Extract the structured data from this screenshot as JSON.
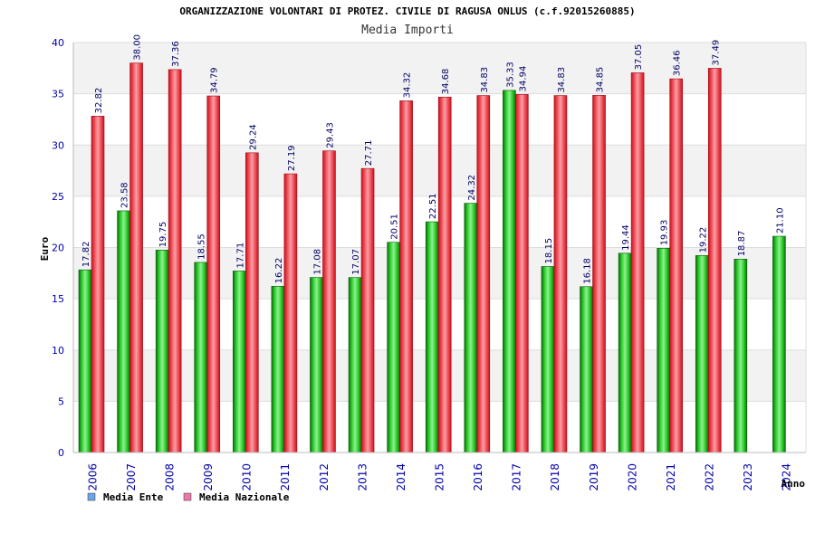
{
  "chart_data": {
    "type": "bar",
    "title": "ORGANIZZAZIONE VOLONTARI DI PROTEZ. CIVILE DI RAGUSA ONLUS (c.f.92015260885)",
    "subtitle": "Media Importi",
    "xlabel": "Anno",
    "ylabel": "Euro",
    "ylim": [
      0,
      40
    ],
    "yticks": [
      0,
      5,
      10,
      15,
      20,
      25,
      30,
      35,
      40
    ],
    "grid": true,
    "legend_position": "bottom-left",
    "categories": [
      "2006",
      "2007",
      "2008",
      "2009",
      "2010",
      "2011",
      "2012",
      "2013",
      "2014",
      "2015",
      "2016",
      "2017",
      "2018",
      "2019",
      "2020",
      "2021",
      "2022",
      "2023",
      "2024"
    ],
    "series": [
      {
        "name": "Media Ente",
        "legend_color": "#6aa5e8",
        "bar_color": "#1faa1f",
        "values": [
          17.82,
          23.58,
          19.75,
          18.55,
          17.71,
          16.22,
          17.08,
          17.07,
          20.51,
          22.51,
          24.32,
          35.33,
          18.15,
          16.18,
          19.44,
          19.93,
          19.22,
          18.87,
          21.1
        ],
        "labels": [
          "17.82",
          "23.58",
          "19.75",
          "18.55",
          "17.71",
          "16.22",
          "17.08",
          "17.07",
          "20.51",
          "22.51",
          "24.32",
          "35.33",
          "18.15",
          "16.18",
          "19.44",
          "19.93",
          "19.22",
          "18.87",
          "21.10"
        ]
      },
      {
        "name": "Media Nazionale",
        "legend_color": "#e87aa8",
        "bar_color": "#e8323c",
        "values": [
          32.82,
          38.0,
          37.36,
          34.79,
          29.24,
          27.19,
          29.43,
          27.71,
          34.32,
          34.68,
          34.83,
          34.94,
          34.83,
          34.85,
          37.05,
          36.46,
          37.49,
          null,
          null
        ],
        "labels": [
          "32.82",
          "38.00",
          "37.36",
          "34.79",
          "29.24",
          "27.19",
          "29.43",
          "27.71",
          "34.32",
          "34.68",
          "34.83",
          "34.94",
          "34.83",
          "34.85",
          "37.05",
          "36.46",
          "37.49",
          null,
          null
        ]
      }
    ]
  }
}
